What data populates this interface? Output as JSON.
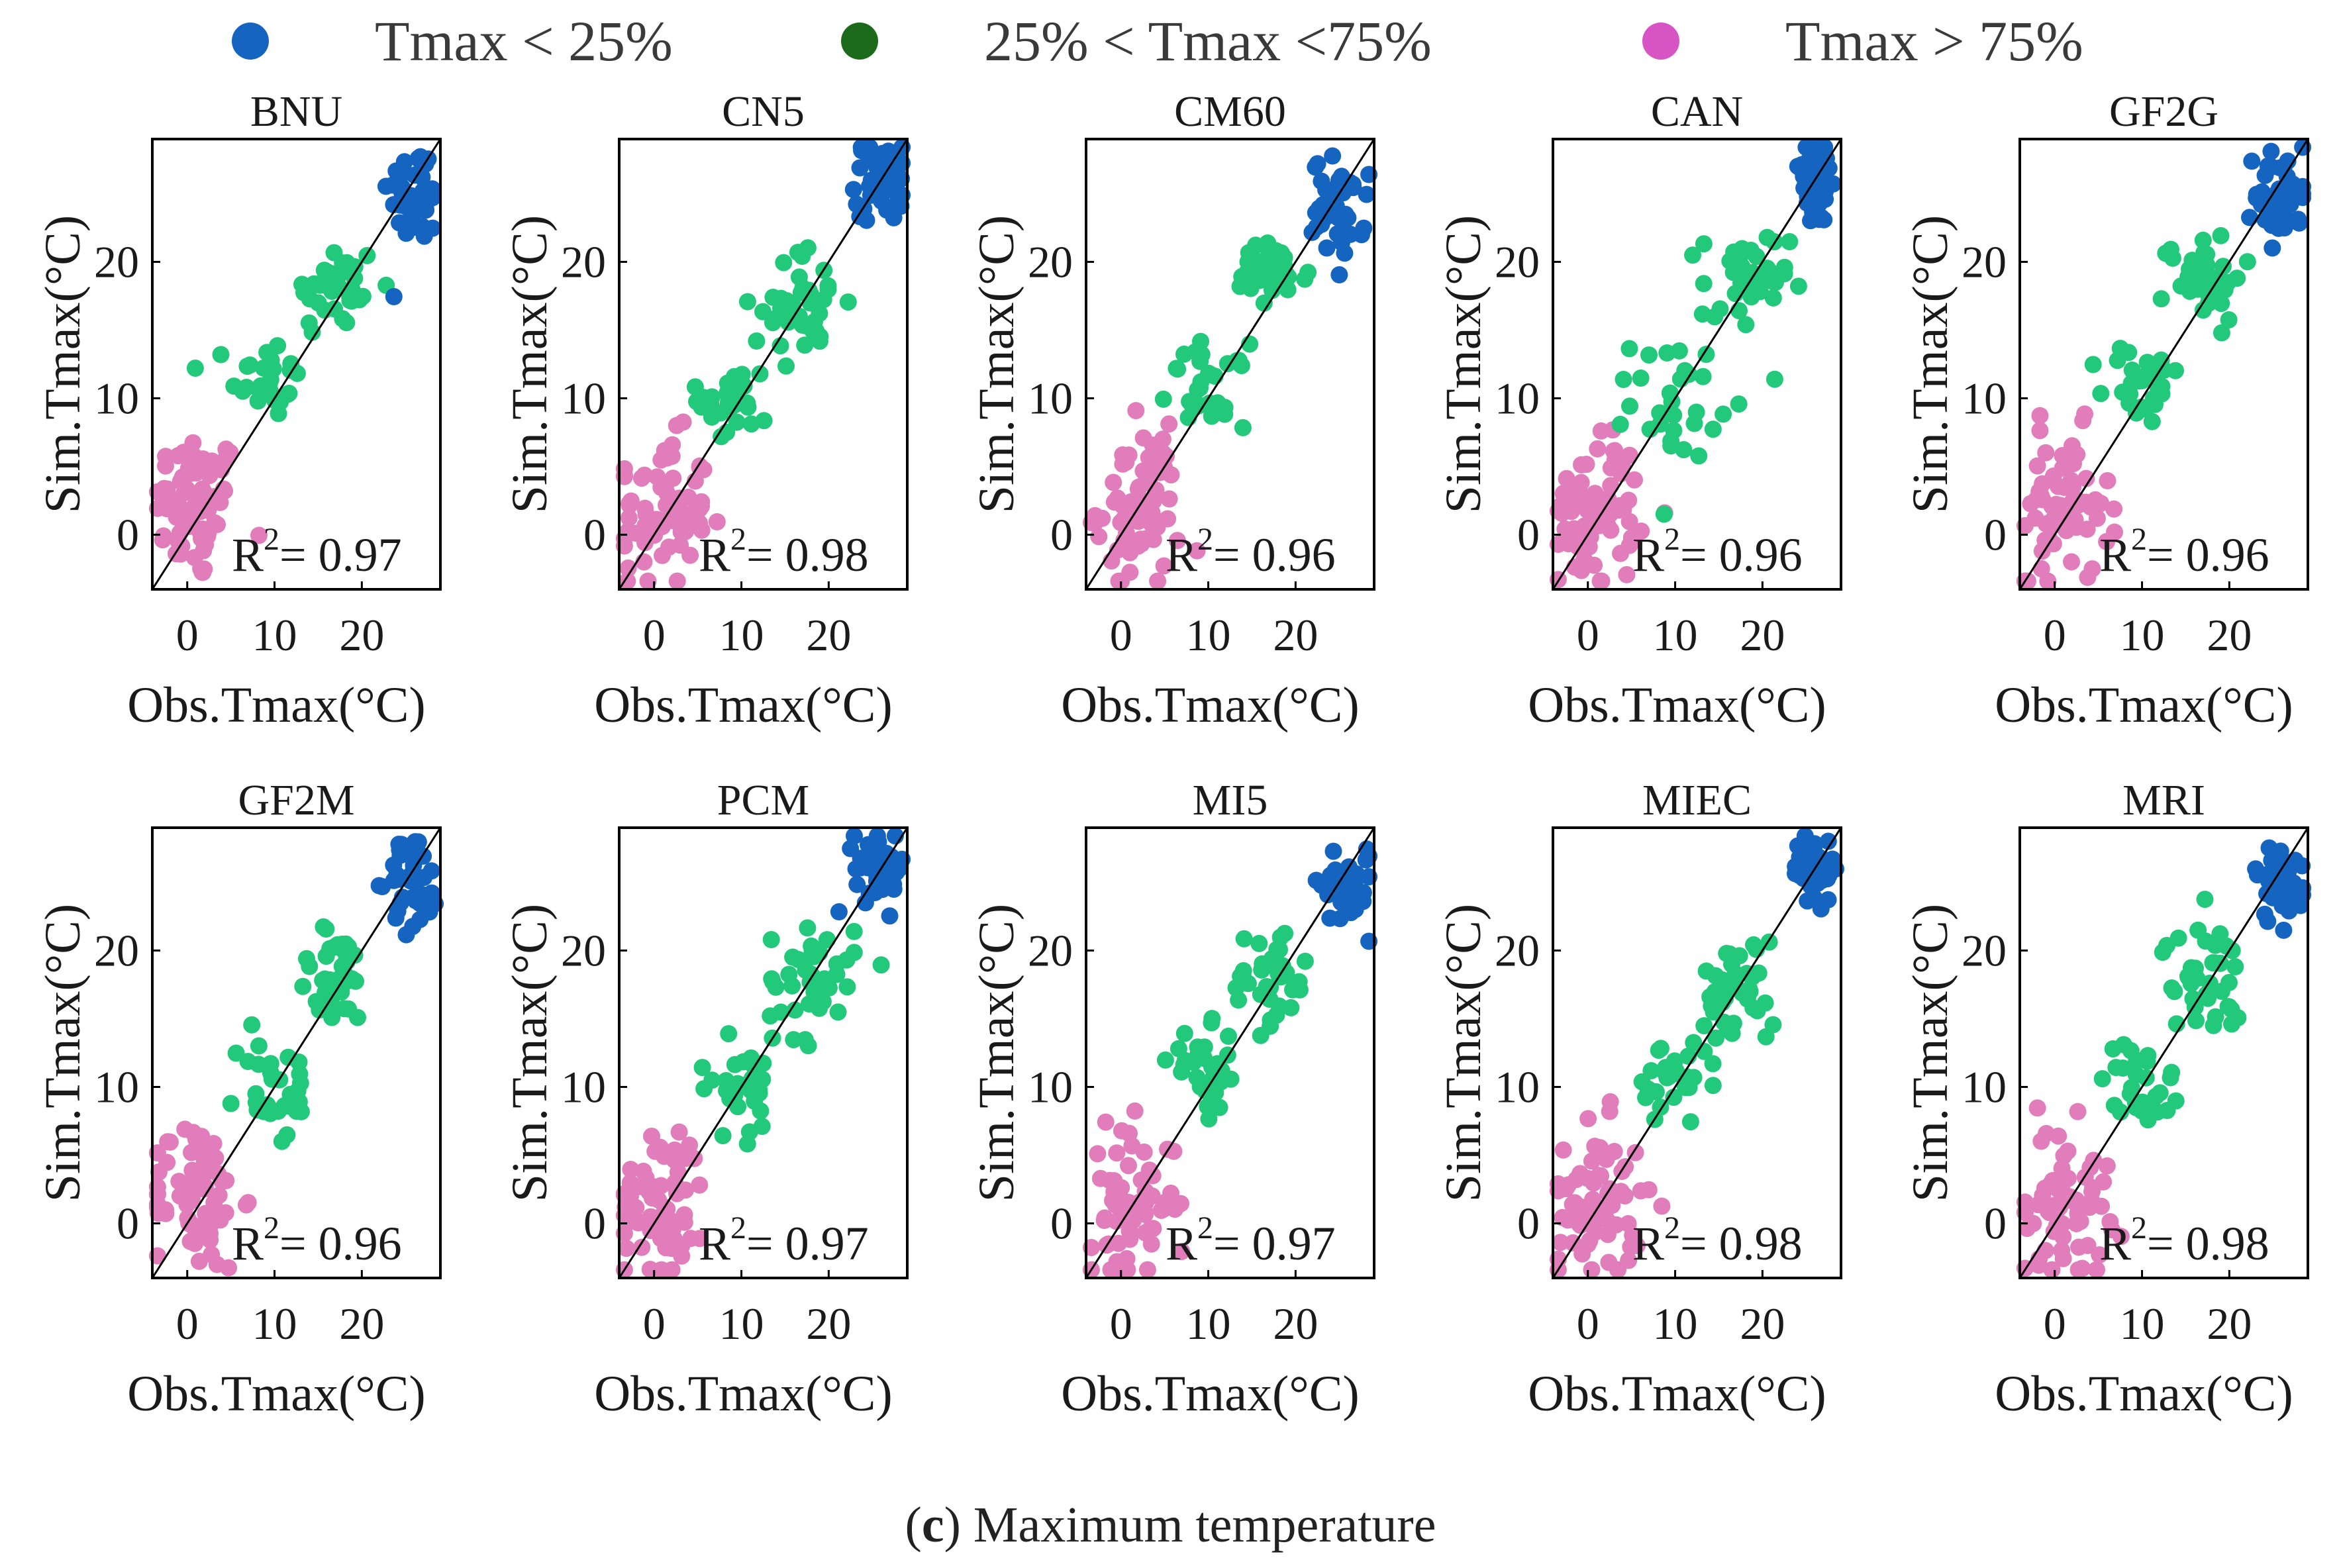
{
  "legend": [
    {
      "label": "Tmax < 25%",
      "color": "#1565c0"
    },
    {
      "label": "25% < Tmax <75%",
      "color": "#1b6b1b"
    },
    {
      "label": "Tmax > 75%",
      "color": "#d654c4"
    }
  ],
  "caption": {
    "prefix": "(",
    "letter": "c",
    "text": ") Maximum temperature"
  },
  "colors": {
    "cold": "#1565c0",
    "mid": "#22c97a",
    "warm": "#e07dba",
    "line": "#000000"
  },
  "chart_data": [
    {
      "type": "scatter",
      "title": "BNU",
      "xlabel": "Obs.Tmax(°C)",
      "ylabel": "Sim.Tmax(°C)",
      "xlim": [
        -4,
        29
      ],
      "ylim": [
        -4,
        29
      ],
      "xticks": [
        0,
        10,
        20
      ],
      "yticks": [
        0,
        10,
        20
      ],
      "r2_text": "= 0.97",
      "r2": 0.97,
      "clusters": [
        {
          "group": "warm",
          "cx": 1,
          "cy": 2,
          "n": 70,
          "sx": 2.6,
          "sy": 2.8
        },
        {
          "group": "mid",
          "cx": 9,
          "cy": 11.5,
          "n": 30,
          "sx": 2,
          "sy": 1.5
        },
        {
          "group": "mid",
          "cx": 17,
          "cy": 18,
          "n": 40,
          "sx": 2.5,
          "sy": 1.8
        },
        {
          "group": "cold",
          "cx": 26,
          "cy": 25,
          "n": 45,
          "sx": 1.5,
          "sy": 1.8
        }
      ]
    },
    {
      "type": "scatter",
      "title": "CN5",
      "xlabel": "Obs.Tmax(°C)",
      "ylabel": "Sim.Tmax(°C)",
      "xlim": [
        -4,
        29
      ],
      "ylim": [
        -4,
        29
      ],
      "xticks": [
        0,
        10,
        20
      ],
      "yticks": [
        0,
        10,
        20
      ],
      "r2_text": "= 0.98",
      "r2": 0.98,
      "clusters": [
        {
          "group": "warm",
          "cx": 1,
          "cy": 1.5,
          "n": 70,
          "sx": 2.6,
          "sy": 2.8
        },
        {
          "group": "mid",
          "cx": 9,
          "cy": 10,
          "n": 30,
          "sx": 2,
          "sy": 1.8
        },
        {
          "group": "mid",
          "cx": 17,
          "cy": 17,
          "n": 40,
          "sx": 2.5,
          "sy": 2
        },
        {
          "group": "cold",
          "cx": 26,
          "cy": 26,
          "n": 45,
          "sx": 1.5,
          "sy": 1.5
        }
      ]
    },
    {
      "type": "scatter",
      "title": "CM60",
      "xlabel": "Obs.Tmax(°C)",
      "ylabel": "Sim.Tmax(°C)",
      "xlim": [
        -4,
        29
      ],
      "ylim": [
        -4,
        29
      ],
      "xticks": [
        0,
        10,
        20
      ],
      "yticks": [
        0,
        10,
        20
      ],
      "r2_text": "= 0.96",
      "r2": 0.96,
      "clusters": [
        {
          "group": "warm",
          "cx": 2,
          "cy": 2,
          "n": 70,
          "sx": 2.4,
          "sy": 2.8
        },
        {
          "group": "mid",
          "cx": 10,
          "cy": 11,
          "n": 30,
          "sx": 2.2,
          "sy": 1.5
        },
        {
          "group": "mid",
          "cx": 17,
          "cy": 19,
          "n": 40,
          "sx": 2.3,
          "sy": 1.2
        },
        {
          "group": "cold",
          "cx": 25,
          "cy": 24,
          "n": 45,
          "sx": 1.5,
          "sy": 1.8
        }
      ]
    },
    {
      "type": "scatter",
      "title": "CAN",
      "xlabel": "Obs.Tmax(°C)",
      "ylabel": "Sim.Tmax(°C)",
      "xlim": [
        -4,
        29
      ],
      "ylim": [
        -4,
        29
      ],
      "xticks": [
        0,
        10,
        20
      ],
      "yticks": [
        0,
        10,
        20
      ],
      "r2_text": "= 0.96",
      "r2": 0.96,
      "clusters": [
        {
          "group": "warm",
          "cx": 1,
          "cy": 2,
          "n": 70,
          "sx": 2.6,
          "sy": 2.8
        },
        {
          "group": "mid",
          "cx": 10,
          "cy": 10,
          "n": 30,
          "sx": 2.5,
          "sy": 2.2
        },
        {
          "group": "mid",
          "cx": 18,
          "cy": 18,
          "n": 40,
          "sx": 2.5,
          "sy": 2.2
        },
        {
          "group": "cold",
          "cx": 26,
          "cy": 26,
          "n": 45,
          "sx": 1.5,
          "sy": 1.8
        }
      ]
    },
    {
      "type": "scatter",
      "title": "GF2G",
      "xlabel": "Obs.Tmax(°C)",
      "ylabel": "Sim.Tmax(°C)",
      "xlim": [
        -4,
        29
      ],
      "ylim": [
        -4,
        29
      ],
      "xticks": [
        0,
        10,
        20
      ],
      "yticks": [
        0,
        10,
        20
      ],
      "r2_text": "= 0.96",
      "r2": 0.96,
      "clusters": [
        {
          "group": "warm",
          "cx": 1,
          "cy": 2,
          "n": 70,
          "sx": 2.6,
          "sy": 2.8
        },
        {
          "group": "mid",
          "cx": 10,
          "cy": 11,
          "n": 30,
          "sx": 2.2,
          "sy": 1.5
        },
        {
          "group": "mid",
          "cx": 17,
          "cy": 19,
          "n": 40,
          "sx": 2.3,
          "sy": 1.6
        },
        {
          "group": "cold",
          "cx": 26,
          "cy": 25,
          "n": 45,
          "sx": 1.5,
          "sy": 1.8
        }
      ]
    },
    {
      "type": "scatter",
      "title": "GF2M",
      "xlabel": "Obs.Tmax(°C)",
      "ylabel": "Sim.Tmax(°C)",
      "xlim": [
        -4,
        29
      ],
      "ylim": [
        -4,
        29
      ],
      "xticks": [
        0,
        10,
        20
      ],
      "yticks": [
        0,
        10,
        20
      ],
      "r2_text": "= 0.96",
      "r2": 0.96,
      "clusters": [
        {
          "group": "warm",
          "cx": 1,
          "cy": 2,
          "n": 70,
          "sx": 2.6,
          "sy": 2.8
        },
        {
          "group": "mid",
          "cx": 10,
          "cy": 10,
          "n": 30,
          "sx": 2.2,
          "sy": 2.2
        },
        {
          "group": "mid",
          "cx": 17,
          "cy": 18,
          "n": 40,
          "sx": 2.3,
          "sy": 1.8
        },
        {
          "group": "cold",
          "cx": 26,
          "cy": 25,
          "n": 45,
          "sx": 1.5,
          "sy": 1.8
        }
      ]
    },
    {
      "type": "scatter",
      "title": "PCM",
      "xlabel": "Obs.Tmax(°C)",
      "ylabel": "Sim.Tmax(°C)",
      "xlim": [
        -4,
        29
      ],
      "ylim": [
        -4,
        29
      ],
      "xticks": [
        0,
        10,
        20
      ],
      "yticks": [
        0,
        10,
        20
      ],
      "r2_text": "= 0.97",
      "r2": 0.97,
      "clusters": [
        {
          "group": "warm",
          "cx": 1,
          "cy": 2,
          "n": 70,
          "sx": 2.6,
          "sy": 2.8
        },
        {
          "group": "mid",
          "cx": 10,
          "cy": 10,
          "n": 30,
          "sx": 2.5,
          "sy": 1.8
        },
        {
          "group": "mid",
          "cx": 18,
          "cy": 18,
          "n": 40,
          "sx": 2.5,
          "sy": 2.2
        },
        {
          "group": "cold",
          "cx": 26,
          "cy": 26,
          "n": 45,
          "sx": 1.5,
          "sy": 1.5
        }
      ]
    },
    {
      "type": "scatter",
      "title": "MI5",
      "xlabel": "Obs.Tmax(°C)",
      "ylabel": "Sim.Tmax(°C)",
      "xlim": [
        -4,
        29
      ],
      "ylim": [
        -4,
        29
      ],
      "xticks": [
        0,
        10,
        20
      ],
      "yticks": [
        0,
        10,
        20
      ],
      "r2_text": "= 0.97",
      "r2": 0.97,
      "clusters": [
        {
          "group": "warm",
          "cx": 1,
          "cy": 1.5,
          "n": 70,
          "sx": 2.6,
          "sy": 2.8
        },
        {
          "group": "mid",
          "cx": 10,
          "cy": 11,
          "n": 30,
          "sx": 2.2,
          "sy": 1.6
        },
        {
          "group": "mid",
          "cx": 17,
          "cy": 18,
          "n": 40,
          "sx": 2.3,
          "sy": 1.8
        },
        {
          "group": "cold",
          "cx": 26,
          "cy": 25,
          "n": 45,
          "sx": 1.5,
          "sy": 1.5
        }
      ]
    },
    {
      "type": "scatter",
      "title": "MIEC",
      "xlabel": "Obs.Tmax(°C)",
      "ylabel": "Sim.Tmax(°C)",
      "xlim": [
        -4,
        29
      ],
      "ylim": [
        -4,
        29
      ],
      "xticks": [
        0,
        10,
        20
      ],
      "yticks": [
        0,
        10,
        20
      ],
      "r2_text": "= 0.98",
      "r2": 0.98,
      "clusters": [
        {
          "group": "warm",
          "cx": 1,
          "cy": 1.5,
          "n": 70,
          "sx": 2.6,
          "sy": 2.8
        },
        {
          "group": "mid",
          "cx": 10,
          "cy": 10,
          "n": 30,
          "sx": 2.2,
          "sy": 1.8
        },
        {
          "group": "mid",
          "cx": 17,
          "cy": 17,
          "n": 40,
          "sx": 2.3,
          "sy": 2
        },
        {
          "group": "cold",
          "cx": 26,
          "cy": 26,
          "n": 45,
          "sx": 1.2,
          "sy": 1.2
        }
      ]
    },
    {
      "type": "scatter",
      "title": "MRI",
      "xlabel": "Obs.Tmax(°C)",
      "ylabel": "Sim.Tmax(°C)",
      "xlim": [
        -4,
        29
      ],
      "ylim": [
        -4,
        29
      ],
      "xticks": [
        0,
        10,
        20
      ],
      "yticks": [
        0,
        10,
        20
      ],
      "r2_text": "= 0.98",
      "r2": 0.98,
      "clusters": [
        {
          "group": "warm",
          "cx": 1,
          "cy": 1.5,
          "n": 70,
          "sx": 2.6,
          "sy": 2.8
        },
        {
          "group": "mid",
          "cx": 10,
          "cy": 10,
          "n": 30,
          "sx": 2.2,
          "sy": 1.8
        },
        {
          "group": "mid",
          "cx": 17,
          "cy": 18,
          "n": 40,
          "sx": 2.3,
          "sy": 2
        },
        {
          "group": "cold",
          "cx": 26,
          "cy": 25,
          "n": 45,
          "sx": 1.5,
          "sy": 1.5
        }
      ]
    }
  ]
}
